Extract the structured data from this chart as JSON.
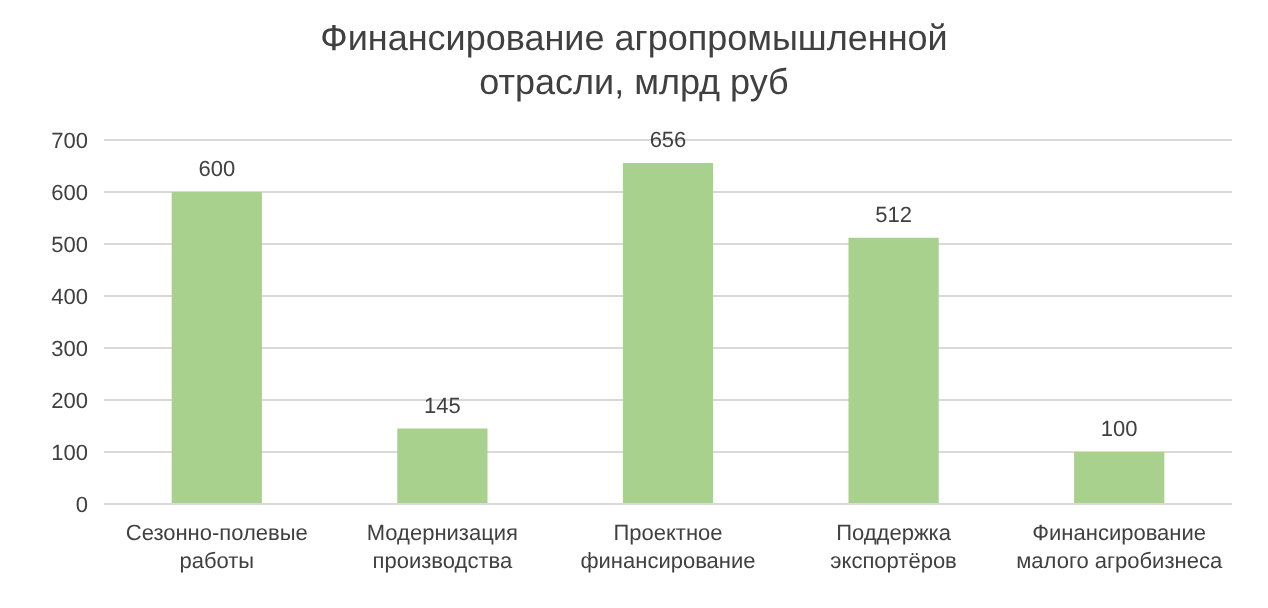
{
  "chart_data": {
    "type": "bar",
    "title": "Финансирование агропромышленной отрасли, млрд руб",
    "categories": [
      "Сезонно-полевые работы",
      "Модернизация производства",
      "Проектное финансирование",
      "Поддержка экспортёров",
      "Финансирование малого агробизнеса"
    ],
    "values": [
      600,
      145,
      656,
      512,
      100
    ],
    "color": "#a9d18e",
    "ylim": [
      0,
      700
    ],
    "yticks": [
      0,
      100,
      200,
      300,
      400,
      500,
      600,
      700
    ],
    "grid": "y",
    "data_labels": true
  }
}
